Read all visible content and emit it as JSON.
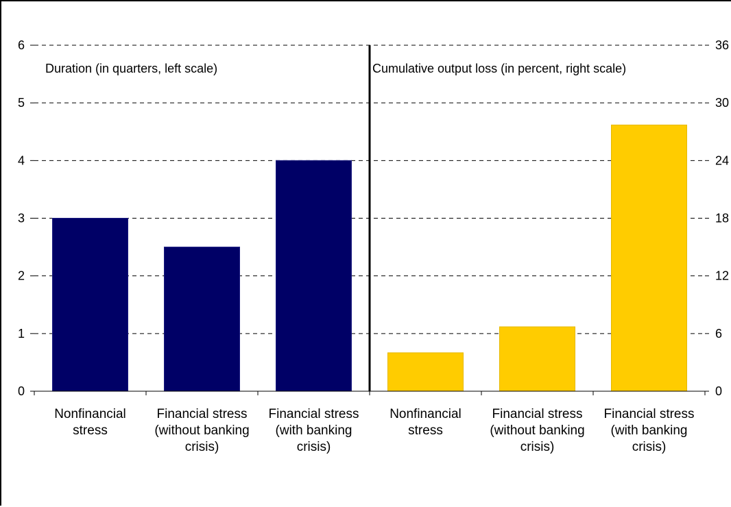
{
  "chart_data": {
    "type": "bar",
    "categories": [
      "Nonfinancial stress",
      "Financial stress (without banking crisis)",
      "Financial stress (with banking crisis)"
    ],
    "category_label_lines": [
      [
        "Nonfinancial",
        "stress"
      ],
      [
        "Financial stress",
        "(without banking",
        "crisis)"
      ],
      [
        "Financial stress",
        "(with banking",
        "crisis)"
      ]
    ],
    "panels": [
      {
        "annotation": "Duration (in quarters, left scale)",
        "axis": "left",
        "color": "#000066",
        "values": [
          3,
          2.5,
          4
        ]
      },
      {
        "annotation": "Cumulative output loss (in percent, right scale)",
        "axis": "right",
        "color": "#FFCC00",
        "values": [
          4,
          6.7,
          27.7
        ]
      }
    ],
    "left_axis": {
      "ylim": [
        0,
        6
      ],
      "ticks": [
        "0",
        "1",
        "2",
        "3",
        "4",
        "5",
        "6"
      ]
    },
    "right_axis": {
      "ylim": [
        0,
        36
      ],
      "ticks": [
        "0",
        "6",
        "12",
        "18",
        "24",
        "30",
        "36"
      ]
    },
    "grid": true,
    "divider_color": "#000000"
  }
}
